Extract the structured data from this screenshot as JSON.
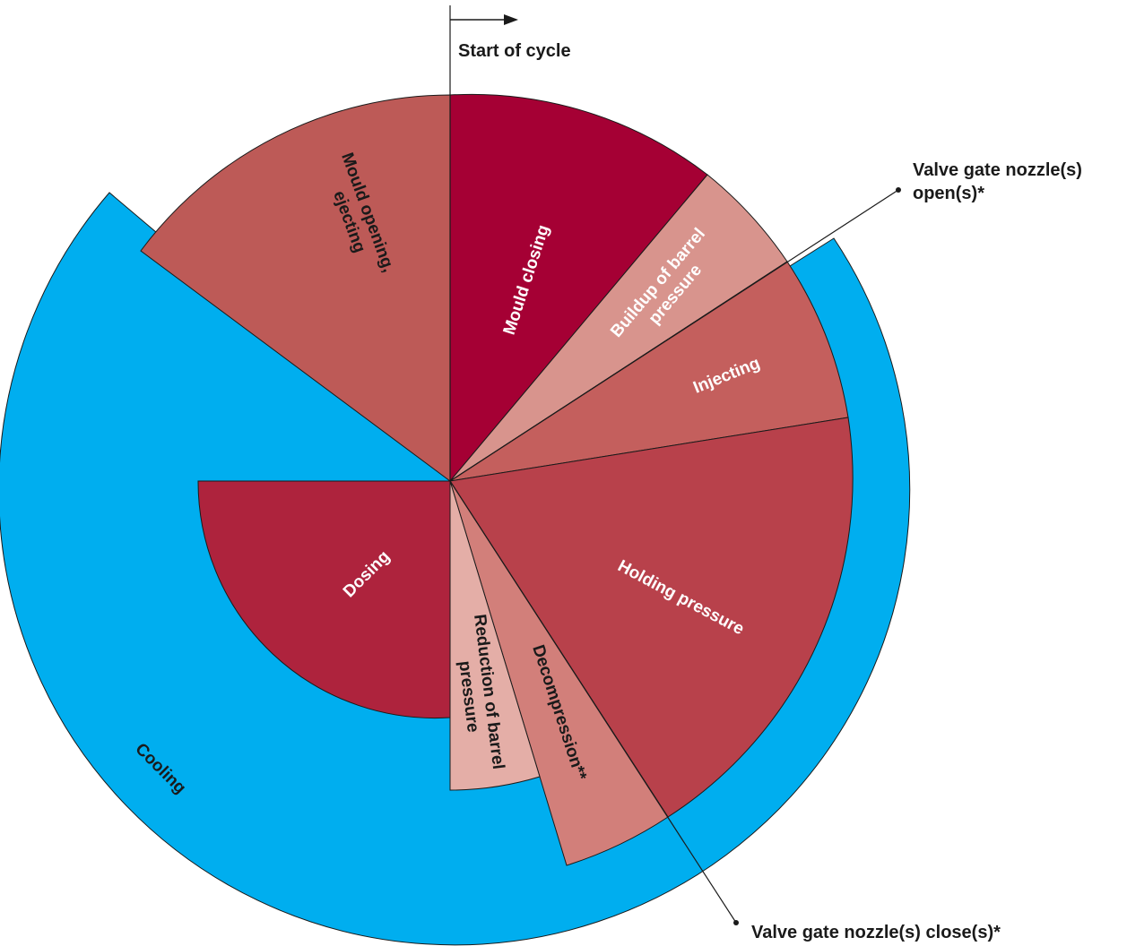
{
  "diagram": {
    "start_label": "Start of cycle",
    "outer_ring_label": "Cooling",
    "valve_open_label": [
      "Valve gate nozzle(s)",
      "open(s)*"
    ],
    "valve_close_label": "Valve gate nozzle(s) close(s)*",
    "phases": [
      {
        "id": "mould-closing",
        "lines": [
          "Mould closing"
        ]
      },
      {
        "id": "buildup-barrel-pressure",
        "lines": [
          "Buildup of barrel",
          "pressure"
        ]
      },
      {
        "id": "injecting",
        "lines": [
          "Injecting"
        ]
      },
      {
        "id": "holding-pressure",
        "lines": [
          "Holding pressure"
        ]
      },
      {
        "id": "decompression",
        "lines": [
          "Decompression**"
        ]
      },
      {
        "id": "reduction-barrel-pressure",
        "lines": [
          "Reduction of barrel",
          "pressure"
        ]
      },
      {
        "id": "dosing",
        "lines": [
          "Dosing"
        ]
      },
      {
        "id": "mould-opening-ejecting",
        "lines": [
          "Mould opening,",
          "ejecting"
        ]
      }
    ],
    "colors": {
      "cooling": "#00AEEF",
      "mould_closing": "#A50034",
      "buildup": "#D8948D",
      "injecting": "#C45F5D",
      "holding": "#B8414B",
      "decompression": "#D27F7A",
      "reduction": "#E4AEA7",
      "dosing": "#AE233D",
      "mould_opening": "#BD5A57"
    }
  }
}
